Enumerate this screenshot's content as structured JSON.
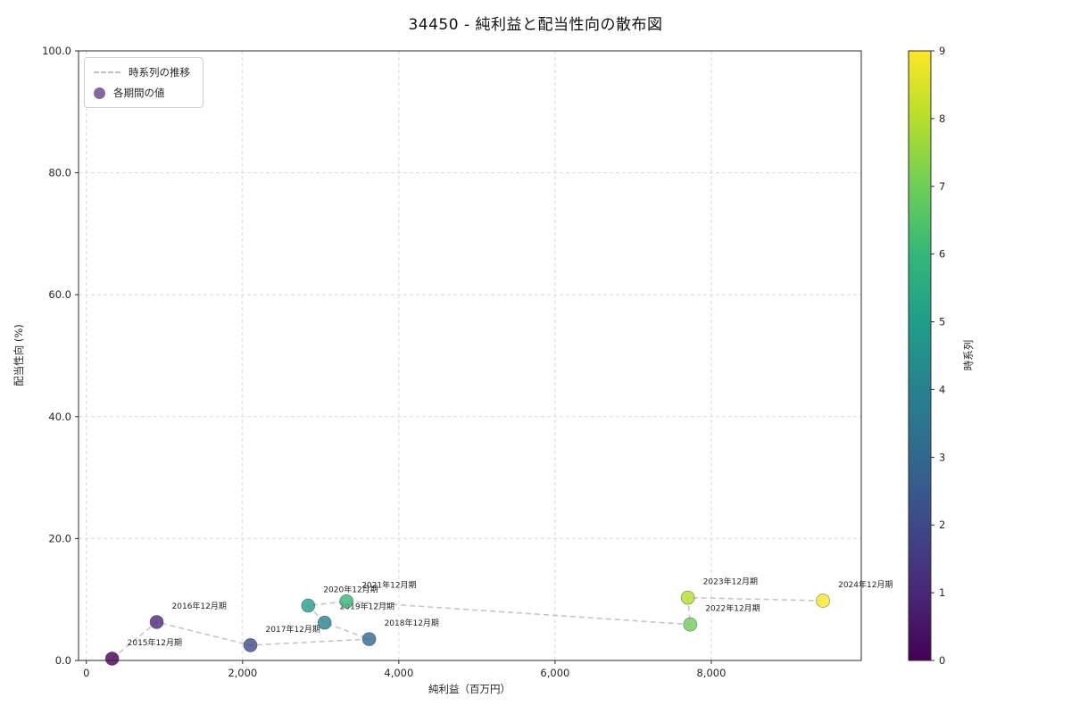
{
  "chart_data": {
    "type": "scatter",
    "title": "34450 - 純利益と配当性向の散布図",
    "xlabel": "純利益（百万円）",
    "ylabel": "配当性向 (%)",
    "xlim": [
      -100,
      9920
    ],
    "ylim": [
      0,
      100
    ],
    "x_ticks": [
      0,
      2000,
      4000,
      6000,
      8000
    ],
    "x_tick_labels": [
      "0",
      "2,000",
      "4,000",
      "6,000",
      "8,000"
    ],
    "y_ticks": [
      0,
      20,
      40,
      60,
      80,
      100
    ],
    "y_tick_labels": [
      "0.0",
      "20.0",
      "40.0",
      "60.0",
      "80.0",
      "100.0"
    ],
    "grid": true,
    "line_style": "dashed",
    "legend": {
      "position": "upper left",
      "entries": [
        {
          "type": "line",
          "label": "時系列の推移",
          "color": "#bfbfbf"
        },
        {
          "type": "marker",
          "label": "各期間の値",
          "color": "#6b4d8e"
        }
      ]
    },
    "colorbar": {
      "label": "時系列",
      "min": 0,
      "max": 9,
      "ticks": [
        0,
        1,
        2,
        3,
        4,
        5,
        6,
        7,
        8,
        9
      ],
      "colormap": "viridis",
      "stops": [
        "#440154",
        "#482878",
        "#3e4989",
        "#31688e",
        "#26828e",
        "#1f9e89",
        "#35b779",
        "#6ece58",
        "#b5de2b",
        "#fde725"
      ]
    },
    "series": [
      {
        "name": "各期間の値",
        "points": [
          {
            "label": "2015年12月期",
            "x": 330,
            "y": 0.3,
            "t": 0,
            "color": "#440154"
          },
          {
            "label": "2016年12月期",
            "x": 900,
            "y": 6.3,
            "t": 1,
            "color": "#482878"
          },
          {
            "label": "2017年12月期",
            "x": 2100,
            "y": 2.5,
            "t": 2,
            "color": "#3e4989"
          },
          {
            "label": "2018年12月期",
            "x": 3620,
            "y": 3.5,
            "t": 3,
            "color": "#31688e"
          },
          {
            "label": "2019年12月期",
            "x": 3050,
            "y": 6.2,
            "t": 4,
            "color": "#26828e"
          },
          {
            "label": "2020年12月期",
            "x": 2840,
            "y": 9.0,
            "t": 5,
            "color": "#1f9e89"
          },
          {
            "label": "2021年12月期",
            "x": 3330,
            "y": 9.7,
            "t": 6,
            "color": "#35b779"
          },
          {
            "label": "2022年12月期",
            "x": 7730,
            "y": 5.9,
            "t": 7,
            "color": "#6ece58"
          },
          {
            "label": "2023年12月期",
            "x": 7700,
            "y": 10.3,
            "t": 8,
            "color": "#b5de2b"
          },
          {
            "label": "2024年12月期",
            "x": 9430,
            "y": 9.8,
            "t": 9,
            "color": "#fde725"
          }
        ]
      }
    ]
  }
}
